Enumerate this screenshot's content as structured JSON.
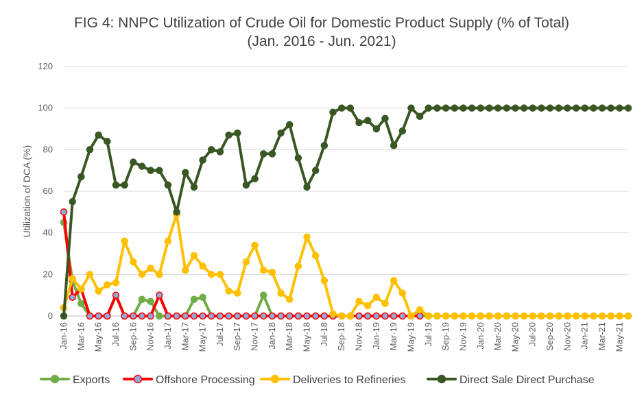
{
  "chart_data": {
    "type": "line",
    "title": "FIG 4: NNPC Utilization of Crude Oil for Domestic Product Supply (% of Total)",
    "subtitle": "(Jan. 2016 - Jun. 2021)",
    "xlabel": "",
    "ylabel": "Utilization of DCA (%)",
    "ylim": [
      0,
      120
    ],
    "yticks": [
      0,
      20,
      40,
      60,
      80,
      100,
      120
    ],
    "grid": true,
    "legend_position": "bottom",
    "months_count": 66,
    "x_tick_labels": [
      "Jan-16",
      "Mar-16",
      "May-16",
      "Jul-16",
      "Sep-16",
      "Nov-16",
      "Jan-17",
      "Mar-17",
      "May-17",
      "Jul-17",
      "Sep-17",
      "Nov-17",
      "Jan-18",
      "Mar-18",
      "May-18",
      "Jul-18",
      "Sep-18",
      "Nov-18",
      "Jan-19",
      "Mar-19",
      "May-19",
      "Jul-19",
      "Sep-19",
      "Nov-19",
      "Jan-20",
      "Mar-20",
      "May-20",
      "Jul-20",
      "Sep-20",
      "Nov-20",
      "Jan-21",
      "Mar-21",
      "May-21"
    ],
    "series": [
      {
        "name": "Exports",
        "color": "#70AD47",
        "marker_fill": "#70AD47",
        "values": [
          45,
          17,
          6,
          0,
          0,
          0,
          10,
          0,
          0,
          8,
          7,
          0,
          0,
          0,
          0,
          8,
          9,
          0,
          0,
          0,
          0,
          0,
          0,
          10,
          0,
          0,
          0,
          0,
          0,
          0,
          0,
          0,
          0,
          0,
          0,
          0,
          0,
          0,
          0,
          0,
          0,
          0,
          0,
          0,
          0,
          0,
          0,
          0,
          0,
          0,
          0,
          0,
          0,
          0,
          0,
          0,
          0,
          0,
          0,
          0,
          0,
          0,
          0,
          0,
          0,
          0
        ]
      },
      {
        "name": "Offshore Processing",
        "color": "#FF0000",
        "marker_fill": "#8FA9DC",
        "values": [
          50,
          9,
          13,
          0,
          0,
          0,
          10,
          0,
          0,
          0,
          0,
          10,
          0,
          0,
          0,
          0,
          0,
          0,
          0,
          0,
          0,
          0,
          0,
          0,
          0,
          0,
          0,
          0,
          0,
          0,
          0,
          0,
          0,
          0,
          0,
          0,
          0,
          0,
          0,
          0,
          0,
          0,
          null,
          null,
          null,
          null,
          null,
          null,
          null,
          null,
          null,
          null,
          null,
          null,
          null,
          null,
          null,
          null,
          null,
          null,
          null,
          null,
          null,
          null,
          null,
          null
        ]
      },
      {
        "name": "Deliveries to Refineries",
        "color": "#FFC000",
        "marker_fill": "#FFC000",
        "values": [
          4,
          18,
          13,
          20,
          12,
          15,
          16,
          36,
          26,
          20,
          23,
          20,
          36,
          49,
          22,
          29,
          24,
          20,
          20,
          12,
          11,
          26,
          34,
          22,
          21,
          11,
          8,
          24,
          38,
          29,
          17,
          1,
          0,
          0,
          7,
          5,
          9,
          6,
          17,
          11,
          0,
          3,
          0,
          0,
          0,
          0,
          0,
          0,
          0,
          0,
          0,
          0,
          0,
          0,
          0,
          0,
          0,
          0,
          0,
          0,
          0,
          0,
          0,
          0,
          0,
          0
        ]
      },
      {
        "name": "Direct Sale Direct Purchase",
        "color": "#385723",
        "marker_fill": "#385723",
        "values": [
          0,
          55,
          67,
          80,
          87,
          84,
          63,
          63,
          74,
          72,
          70,
          70,
          63,
          50,
          69,
          62,
          75,
          80,
          79,
          87,
          88,
          63,
          66,
          78,
          78,
          88,
          92,
          76,
          62,
          70,
          82,
          98,
          100,
          100,
          93,
          94,
          90,
          95,
          82,
          89,
          100,
          96,
          100,
          100,
          100,
          100,
          100,
          100,
          100,
          100,
          100,
          100,
          100,
          100,
          100,
          100,
          100,
          100,
          100,
          100,
          100,
          100,
          100,
          100,
          100,
          100
        ]
      }
    ]
  }
}
